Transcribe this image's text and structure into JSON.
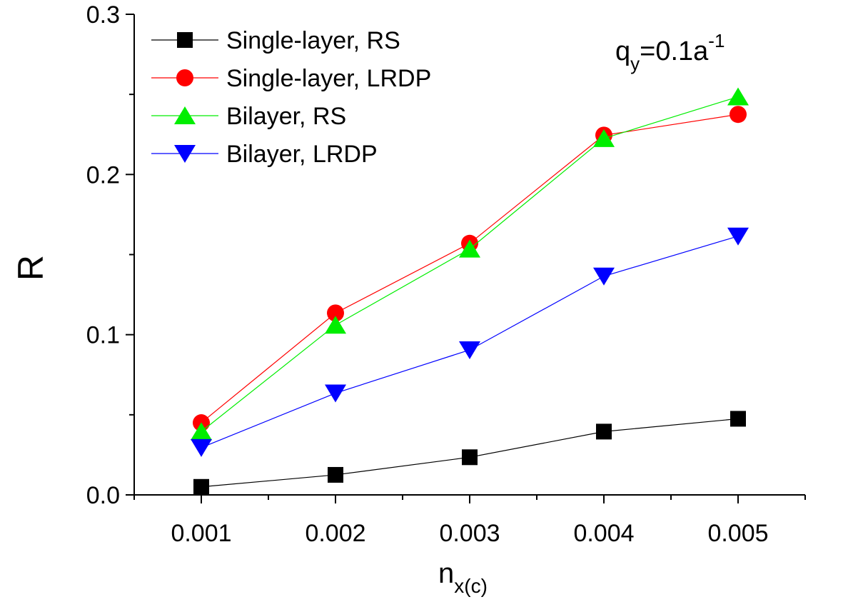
{
  "chart_data": {
    "type": "line",
    "xlabel": "n",
    "xlabel_sub": "x(c)",
    "ylabel": "R",
    "x": [
      0.001,
      0.002,
      0.003,
      0.004,
      0.005
    ],
    "x_tick_labels": [
      "0.001",
      "0.002",
      "0.003",
      "0.004",
      "0.005"
    ],
    "xlim": [
      0.0005,
      0.0055
    ],
    "ylim": [
      0.0,
      0.3
    ],
    "y_ticks": [
      0.0,
      0.1,
      0.2,
      0.3
    ],
    "y_tick_labels": [
      "0.0",
      "0.1",
      "0.2",
      "0.3"
    ],
    "grid": false,
    "legend_position": "top-left",
    "annotation": {
      "main": "q",
      "sub": "y",
      "middle": "=0.1a",
      "sup": "-1"
    },
    "series": [
      {
        "name": "Single-layer, RS",
        "color": "#000000",
        "marker": "square",
        "values": [
          0.005,
          0.0125,
          0.0235,
          0.0395,
          0.0475
        ]
      },
      {
        "name": "Single-layer, LRDP",
        "color": "#ff0000",
        "marker": "circle",
        "values": [
          0.045,
          0.1135,
          0.157,
          0.2245,
          0.2375
        ]
      },
      {
        "name": "Bilayer, RS",
        "color": "#00ee00",
        "marker": "triangle-up",
        "values": [
          0.0395,
          0.106,
          0.1535,
          0.2225,
          0.2485
        ]
      },
      {
        "name": "Bilayer, LRDP",
        "color": "#0000ff",
        "marker": "triangle-down",
        "values": [
          0.0295,
          0.0635,
          0.0905,
          0.1365,
          0.1615
        ]
      }
    ]
  }
}
